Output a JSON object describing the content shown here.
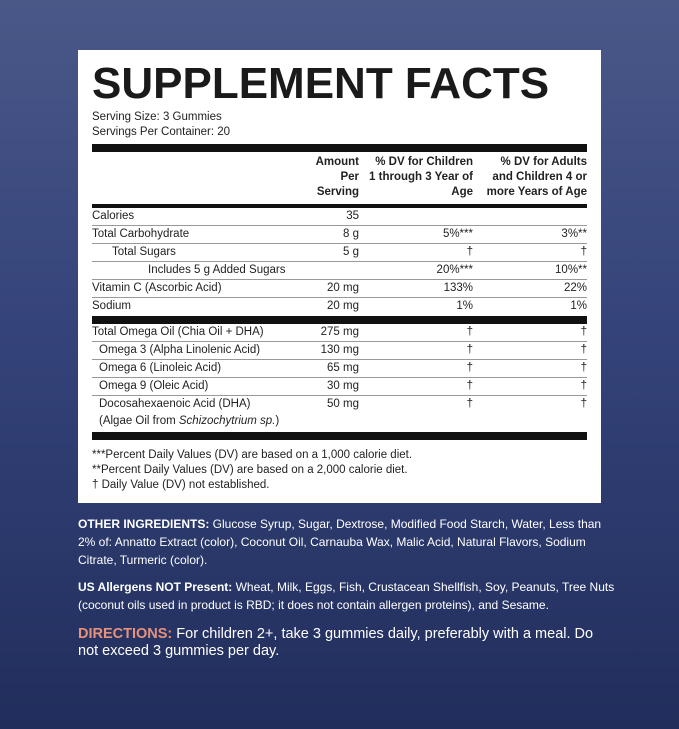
{
  "title": "SUPPLEMENT FACTS",
  "serving_size": "Serving Size: 3 Gummies",
  "servings_per_container": "Servings Per Container: 20",
  "headers": [
    "",
    "Amount Per Serving",
    "% DV for Children 1 through 3 Year of Age",
    "% DV for Adults and Children 4 or more Years of Age"
  ],
  "rows_a": [
    {
      "name": "Calories",
      "amount": "35",
      "dv_child": "",
      "dv_adult": ""
    },
    {
      "name": "Total Carbohydrate",
      "amount": "8 g",
      "dv_child": "5%***",
      "dv_adult": "3%**"
    },
    {
      "name": "Total Sugars",
      "amount": "5 g",
      "dv_child": "†",
      "dv_adult": "†"
    },
    {
      "name": "Includes 5 g Added Sugars",
      "amount": "",
      "dv_child": "20%***",
      "dv_adult": "10%**"
    },
    {
      "name": "Vitamin C (Ascorbic Acid)",
      "amount": "20 mg",
      "dv_child": "133%",
      "dv_adult": "22%"
    },
    {
      "name": "Sodium",
      "amount": "20 mg",
      "dv_child": "1%",
      "dv_adult": "1%"
    }
  ],
  "rows_b": [
    {
      "name": "Total Omega Oil (Chia Oil + DHA)",
      "amount": "275 mg",
      "dv_child": "†",
      "dv_adult": "†"
    },
    {
      "name": "Omega 3 (Alpha Linolenic Acid)",
      "amount": "130 mg",
      "dv_child": "†",
      "dv_adult": "†"
    },
    {
      "name": "Omega 6 (Linoleic Acid)",
      "amount": "65 mg",
      "dv_child": "†",
      "dv_adult": "†"
    },
    {
      "name": "Omega 9 (Oleic Acid)",
      "amount": "30 mg",
      "dv_child": "†",
      "dv_adult": "†"
    },
    {
      "name": "Docosahexaenoic Acid (DHA)",
      "name2_prefix": "(Algae Oil from ",
      "name2_italic": "Schizochytrium sp.",
      "name2_suffix": ")",
      "amount": "50 mg",
      "dv_child": "†",
      "dv_adult": "†"
    }
  ],
  "footnotes": [
    "***Percent Daily Values (DV) are based on a 1,000 calorie diet.",
    "**Percent Daily Values (DV) are based on a 2,000 calorie diet.",
    "† Daily Value (DV) not established."
  ],
  "other_ingredients": {
    "label": "OTHER INGREDIENTS:",
    "text": " Glucose Syrup, Sugar, Dextrose, Modified Food Starch, Water, Less than 2% of: Annatto Extract (color), Coconut Oil, Carnauba Wax, Malic Acid, Natural Flavors, Sodium Citrate, Turmeric (color)."
  },
  "allergens": {
    "label": "US Allergens NOT Present:",
    "text": " Wheat, Milk, Eggs, Fish, Crustacean Shellfish, Soy, Peanuts, Tree Nuts (coconut oils used in product is RBD; it does not contain allergen proteins), and Sesame."
  },
  "directions": {
    "label": "DIRECTIONS:",
    "text": " For children 2+, take 3 gummies daily, preferably with a meal. Do not exceed 3 gummies per day."
  },
  "colors": {
    "accent": "#e8917a",
    "background_top": "#4a5888",
    "background_bottom": "#212e5c"
  }
}
